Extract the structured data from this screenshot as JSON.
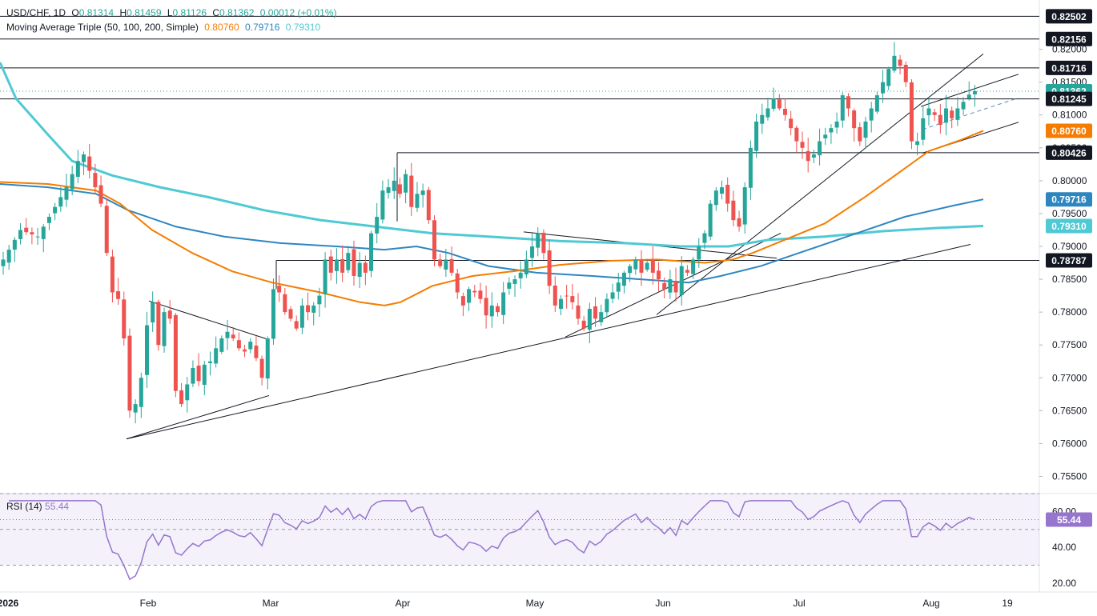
{
  "header": {
    "symbol": "USD/CHF, 1D",
    "open_label": "O",
    "open": "0.81314",
    "high_label": "H",
    "high": "0.81459",
    "low_label": "L",
    "low": "0.81126",
    "close_label": "C",
    "close": "0.81362",
    "change": "0.00012 (+0.01%)",
    "ma_title": "Moving Average Triple (50, 100, 200, Simple)",
    "ma50_value": "0.80760",
    "ma100_value": "0.79716",
    "ma200_value": "0.79310",
    "rsi_title": "RSI (14)",
    "rsi_value": "55.44"
  },
  "colors": {
    "up": "#26a69a",
    "down": "#ef5350",
    "ma50": "#f57c00",
    "ma100": "#2e86c1",
    "ma200": "#4fc9d4",
    "rsi": "#9575cd",
    "last_price_tag": "#26a69a",
    "level_tag": "#131722"
  },
  "chart_data": [
    {
      "type": "candlestick",
      "title": "USD/CHF, 1D",
      "ylim": [
        0.7525,
        0.8275
      ],
      "price_axis_ticks": [
        "0.75500",
        "0.76000",
        "0.76500",
        "0.77000",
        "0.77500",
        "0.78000",
        "0.78500",
        "0.79000",
        "0.79500",
        "0.80000",
        "0.80500",
        "0.81000",
        "0.81500",
        "0.82000"
      ],
      "x_axis_labels": [
        "2026",
        "Feb",
        "Mar",
        "Apr",
        "May",
        "Jun",
        "Jul",
        "Aug",
        "19"
      ],
      "horizontal_levels": [
        0.82502,
        0.82156,
        0.81716,
        0.81245,
        0.80426,
        0.78787
      ],
      "price_tags": [
        {
          "label": "0.82502",
          "kind": "level"
        },
        {
          "label": "0.82156",
          "kind": "level"
        },
        {
          "label": "0.81716",
          "kind": "level"
        },
        {
          "label": "0.81362",
          "kind": "last"
        },
        {
          "label": "0.81245",
          "kind": "level"
        },
        {
          "label": "0.80760",
          "kind": "ma50"
        },
        {
          "label": "0.80426",
          "kind": "level"
        },
        {
          "label": "0.79716",
          "kind": "ma100"
        },
        {
          "label": "0.79310",
          "kind": "ma200"
        },
        {
          "label": "0.78787",
          "kind": "level"
        }
      ],
      "series": [
        {
          "name": "Moving Average Triple (50, 100, 200, Simple) 50",
          "role": "ma50",
          "last": 0.8076
        },
        {
          "name": "Moving Average Triple (50, 100, 200, Simple) 100",
          "role": "ma100",
          "last": 0.79716
        },
        {
          "name": "Moving Average Triple (50, 100, 200, Simple) 200",
          "role": "ma200",
          "last": 0.7931
        }
      ]
    },
    {
      "type": "line",
      "title": "RSI (14)",
      "ylim": [
        15,
        70
      ],
      "y_axis_ticks": [
        "20.00",
        "40.00",
        "60.00"
      ],
      "band": [
        30,
        70
      ],
      "last": 55.44
    }
  ]
}
